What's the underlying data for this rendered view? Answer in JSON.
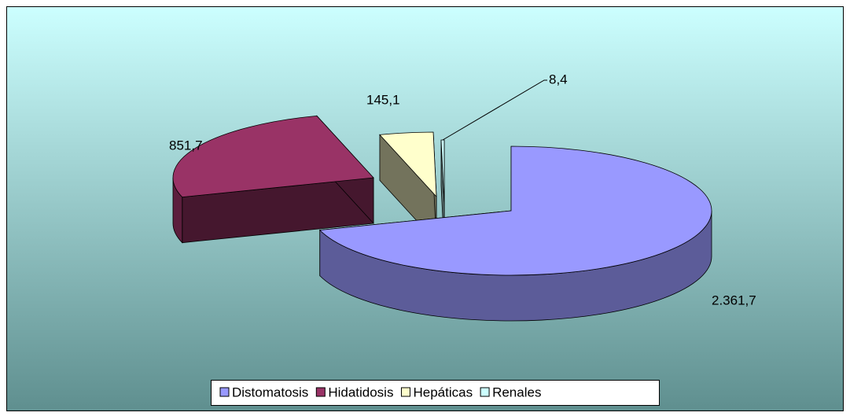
{
  "chart_data": {
    "type": "pie3d",
    "categories": [
      "Distomatosis",
      "Hidatidosis",
      "Hepáticas",
      "Renales"
    ],
    "values": [
      2361.7,
      851.7,
      145.1,
      8.4
    ],
    "value_labels": [
      "2.361,7",
      "851,7",
      "145,1",
      "8,4"
    ],
    "colors": [
      "#9999ff",
      "#993366",
      "#ffffcc",
      "#ccffff"
    ],
    "legend": "bottom"
  }
}
